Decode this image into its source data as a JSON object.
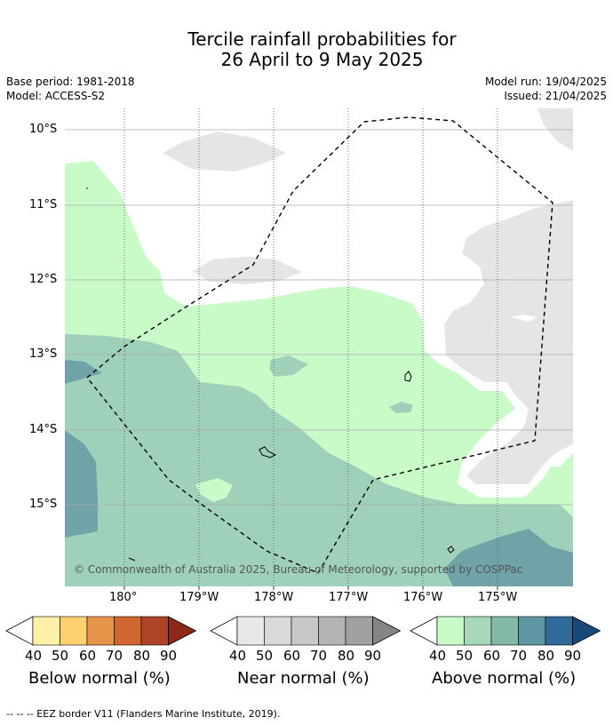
{
  "title_line1": "Tercile rainfall probabilities for",
  "title_line2": "26 April to 9 May 2025",
  "base_period": "Base period: 1981-2018",
  "model": "Model: ACCESS-S2",
  "model_run": "Model run: 19/04/2025",
  "issued": "Issued: 21/04/2025",
  "lat_labels": [
    "10°S",
    "11°S",
    "12°S",
    "13°S",
    "14°S",
    "15°S"
  ],
  "lon_labels": [
    "180°",
    "179°W",
    "178°W",
    "177°W",
    "176°W",
    "175°W"
  ],
  "copyright": "© Commonwealth of Australia 2025, Bureau of Meteorology, supported by COSPPac",
  "footer": "--  --  -- EEZ border V11 (Flanders Marine Institute, 2019).",
  "colorbars": [
    {
      "caption": "Below normal (%)",
      "ticks": [
        "40",
        "50",
        "60",
        "70",
        "80",
        "90"
      ],
      "colors": [
        "#fff0a8",
        "#ffd070",
        "#e5944a",
        "#d0652f",
        "#ad4425",
        "#8c2a1a"
      ]
    },
    {
      "caption": "Near normal (%)",
      "ticks": [
        "40",
        "50",
        "60",
        "70",
        "80",
        "90"
      ],
      "colors": [
        "#e8e8e8",
        "#d9d9d9",
        "#c8c8c8",
        "#b4b4b4",
        "#a0a0a0",
        "#858585"
      ]
    },
    {
      "caption": "Above normal (%)",
      "ticks": [
        "40",
        "50",
        "60",
        "70",
        "80",
        "90"
      ],
      "colors": [
        "#c9fbc9",
        "#a8d8bc",
        "#84b8a8",
        "#5e97a3",
        "#2f6a9a",
        "#174a7a"
      ]
    }
  ],
  "colors": {
    "above_40": "#c9fbc9",
    "above_50": "#9fd1ba",
    "above_60": "#6fa3a8",
    "near_40": "#e5e5e5",
    "gridline": "#aaaaaa"
  }
}
